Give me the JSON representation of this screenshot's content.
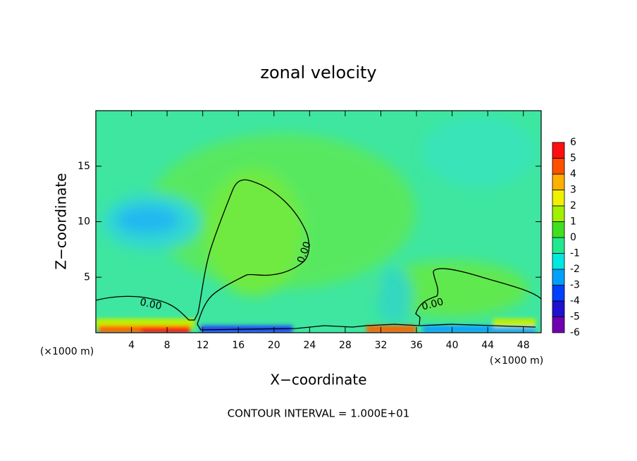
{
  "chart_data": {
    "type": "contour",
    "title": "zonal velocity",
    "x_label": "X−coordinate",
    "y_label": "Z−coordinate",
    "x_unit_left": "(×1000 m)",
    "x_unit_right": "(×1000 m)",
    "note": "CONTOUR INTERVAL = 1.000E+01",
    "xlim": [
      0,
      50
    ],
    "xticks": [
      4,
      8,
      12,
      16,
      20,
      24,
      28,
      32,
      36,
      40,
      44,
      48
    ],
    "ylim": [
      0,
      20
    ],
    "yticks": [
      5,
      10,
      15
    ],
    "contour_labels": [
      "0.00",
      "0.00",
      "0.00"
    ],
    "colorbar": {
      "levels": [
        -6,
        -5,
        -4,
        -3,
        -2,
        -1,
        0,
        1,
        2,
        3,
        4,
        5,
        6
      ],
      "colors": [
        "#7000b0",
        "#2010d0",
        "#0040ff",
        "#00a0ff",
        "#00e8e0",
        "#20e890",
        "#40e020",
        "#a0f000",
        "#f0f000",
        "#ffb000",
        "#ff5000",
        "#ff1010",
        "#f4a0a0"
      ]
    }
  }
}
